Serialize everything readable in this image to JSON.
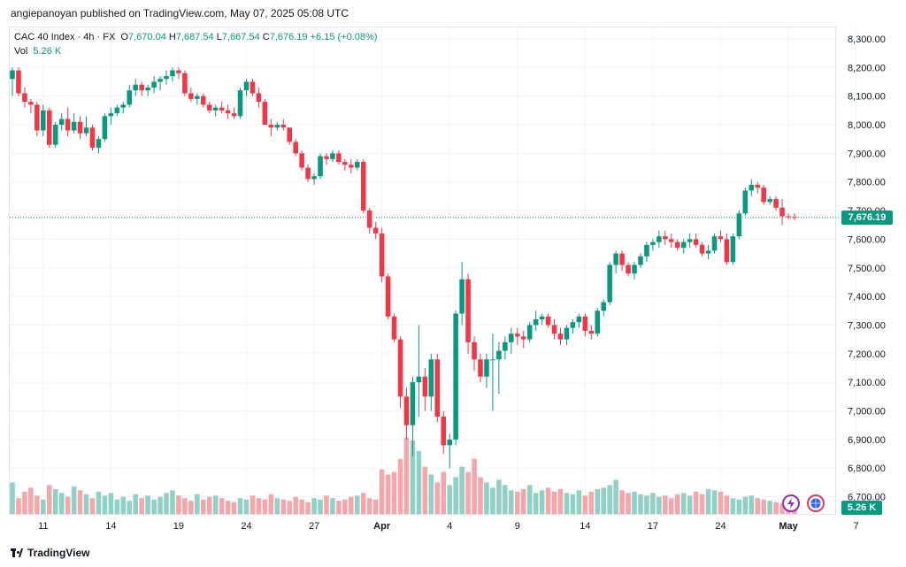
{
  "header": {
    "published": "angiepanoyan published on TradingView.com, May 07, 2025 05:08 UTC"
  },
  "legend": {
    "symbol": "CAC 40 Index · 4h · FX",
    "open_label": "O",
    "open": "7,670.04",
    "high_label": "H",
    "high": "7,687.54",
    "low_label": "L",
    "low": "7,667.54",
    "close_label": "C",
    "close": "7,676.19",
    "change": "+6.15 (+0.08%)",
    "vol_label": "Vol",
    "vol": "5.26 K"
  },
  "price_tag": "7,676.19",
  "volume_tag": "5.26 K",
  "footer": {
    "brand": "TradingView"
  },
  "icons": {
    "flash": "flash-icon",
    "globe": "globe-icon"
  },
  "colors": {
    "up": "#089981",
    "down": "#f23645",
    "vol_up": "#8fd1c4",
    "vol_down": "#f5a6ab",
    "grid": "#f0f3fa",
    "axis_text": "#131722"
  },
  "chart_data": {
    "type": "candlestick",
    "title": "CAC 40 Index · 4h · FX",
    "y_axis": {
      "min": 6640,
      "max": 8340,
      "ticks": [
        "8,300.00",
        "8,200.00",
        "8,100.00",
        "8,000.00",
        "7,900.00",
        "7,800.00",
        "7,700.00",
        "7,600.00",
        "7,500.00",
        "7,400.00",
        "7,300.00",
        "7,200.00",
        "7,100.00",
        "7,000.00",
        "6,900.00",
        "6,800.00",
        "6,700.00"
      ],
      "tick_values": [
        8300,
        8200,
        8100,
        8000,
        7900,
        7800,
        7700,
        7600,
        7500,
        7400,
        7300,
        7200,
        7100,
        7000,
        6900,
        6800,
        6700
      ]
    },
    "x_axis": {
      "labels": [
        "11",
        "14",
        "19",
        "24",
        "27",
        "Apr",
        "4",
        "9",
        "14",
        "17",
        "24",
        "May",
        "7"
      ],
      "label_bar_index": [
        5,
        16,
        27,
        38,
        49,
        60,
        71,
        82,
        93,
        104,
        115,
        126,
        137
      ]
    },
    "last_price": 7676.19,
    "candles_ohlc": [
      [
        8160,
        8200,
        8100,
        8190
      ],
      [
        8190,
        8200,
        8100,
        8110
      ],
      [
        8110,
        8130,
        8060,
        8080
      ],
      [
        8080,
        8090,
        8040,
        8070
      ],
      [
        8070,
        8080,
        7960,
        7980
      ],
      [
        7980,
        8070,
        7960,
        8050
      ],
      [
        8050,
        8060,
        7920,
        7930
      ],
      [
        7930,
        8010,
        7920,
        8000
      ],
      [
        8000,
        8040,
        7980,
        8020
      ],
      [
        8020,
        8060,
        7960,
        7980
      ],
      [
        7980,
        8040,
        7970,
        8010
      ],
      [
        8010,
        8030,
        7950,
        7970
      ],
      [
        7970,
        8030,
        7960,
        7990
      ],
      [
        7990,
        8000,
        7910,
        7920
      ],
      [
        7920,
        7960,
        7900,
        7950
      ],
      [
        7950,
        8040,
        7940,
        8030
      ],
      [
        8030,
        8060,
        8000,
        8040
      ],
      [
        8040,
        8070,
        8030,
        8060
      ],
      [
        8060,
        8080,
        8040,
        8070
      ],
      [
        8070,
        8140,
        8060,
        8120
      ],
      [
        8120,
        8160,
        8100,
        8140
      ],
      [
        8140,
        8150,
        8100,
        8120
      ],
      [
        8120,
        8140,
        8100,
        8130
      ],
      [
        8130,
        8170,
        8110,
        8150
      ],
      [
        8150,
        8170,
        8120,
        8160
      ],
      [
        8160,
        8190,
        8140,
        8170
      ],
      [
        8170,
        8200,
        8150,
        8190
      ],
      [
        8190,
        8200,
        8160,
        8180
      ],
      [
        8180,
        8190,
        8100,
        8110
      ],
      [
        8110,
        8130,
        8080,
        8090
      ],
      [
        8090,
        8110,
        8070,
        8100
      ],
      [
        8100,
        8110,
        8060,
        8070
      ],
      [
        8070,
        8080,
        8040,
        8050
      ],
      [
        8050,
        8070,
        8030,
        8060
      ],
      [
        8060,
        8080,
        8040,
        8050
      ],
      [
        8050,
        8070,
        8020,
        8040
      ],
      [
        8040,
        8060,
        8020,
        8030
      ],
      [
        8030,
        8130,
        8020,
        8120
      ],
      [
        8120,
        8160,
        8100,
        8150
      ],
      [
        8150,
        8160,
        8100,
        8110
      ],
      [
        8110,
        8130,
        8060,
        8080
      ],
      [
        8080,
        8090,
        8000,
        8000
      ],
      [
        8000,
        8020,
        7960,
        7990
      ],
      [
        7990,
        8010,
        7980,
        8000
      ],
      [
        8000,
        8020,
        7980,
        7990
      ],
      [
        7990,
        7990,
        7930,
        7940
      ],
      [
        7940,
        7950,
        7890,
        7900
      ],
      [
        7900,
        7910,
        7840,
        7850
      ],
      [
        7850,
        7860,
        7800,
        7810
      ],
      [
        7810,
        7830,
        7790,
        7820
      ],
      [
        7820,
        7900,
        7810,
        7890
      ],
      [
        7890,
        7900,
        7860,
        7880
      ],
      [
        7880,
        7910,
        7870,
        7900
      ],
      [
        7900,
        7910,
        7860,
        7870
      ],
      [
        7870,
        7880,
        7840,
        7860
      ],
      [
        7860,
        7880,
        7830,
        7850
      ],
      [
        7850,
        7880,
        7840,
        7870
      ],
      [
        7870,
        7880,
        7690,
        7700
      ],
      [
        7700,
        7710,
        7620,
        7640
      ],
      [
        7640,
        7660,
        7600,
        7620
      ],
      [
        7620,
        7640,
        7450,
        7470
      ],
      [
        7470,
        7480,
        7320,
        7330
      ],
      [
        7330,
        7340,
        7240,
        7250
      ],
      [
        7250,
        7260,
        7010,
        7050
      ],
      [
        7050,
        7080,
        6900,
        6950
      ],
      [
        6950,
        7120,
        6840,
        7100
      ],
      [
        7100,
        7300,
        6980,
        7120
      ],
      [
        7120,
        7150,
        7000,
        7050
      ],
      [
        7050,
        7200,
        7000,
        7180
      ],
      [
        7180,
        7200,
        6960,
        6980
      ],
      [
        6980,
        7000,
        6850,
        6880
      ],
      [
        6880,
        6920,
        6800,
        6900
      ],
      [
        6900,
        7350,
        6880,
        7340
      ],
      [
        7340,
        7520,
        7300,
        7460
      ],
      [
        7460,
        7480,
        7200,
        7240
      ],
      [
        7240,
        7260,
        7140,
        7180
      ],
      [
        7180,
        7200,
        7100,
        7120
      ],
      [
        7120,
        7200,
        7080,
        7180
      ],
      [
        7180,
        7270,
        7000,
        7180
      ],
      [
        7180,
        7240,
        7060,
        7210
      ],
      [
        7210,
        7260,
        7180,
        7240
      ],
      [
        7240,
        7290,
        7200,
        7270
      ],
      [
        7270,
        7290,
        7230,
        7260
      ],
      [
        7260,
        7280,
        7220,
        7250
      ],
      [
        7250,
        7310,
        7240,
        7300
      ],
      [
        7300,
        7350,
        7280,
        7320
      ],
      [
        7320,
        7340,
        7300,
        7330
      ],
      [
        7330,
        7340,
        7290,
        7300
      ],
      [
        7300,
        7320,
        7250,
        7270
      ],
      [
        7270,
        7290,
        7230,
        7250
      ],
      [
        7250,
        7300,
        7230,
        7290
      ],
      [
        7290,
        7320,
        7270,
        7310
      ],
      [
        7310,
        7340,
        7290,
        7330
      ],
      [
        7330,
        7340,
        7260,
        7280
      ],
      [
        7280,
        7300,
        7250,
        7270
      ],
      [
        7270,
        7360,
        7260,
        7350
      ],
      [
        7350,
        7390,
        7330,
        7380
      ],
      [
        7380,
        7520,
        7370,
        7510
      ],
      [
        7510,
        7560,
        7480,
        7550
      ],
      [
        7550,
        7560,
        7490,
        7510
      ],
      [
        7510,
        7520,
        7470,
        7480
      ],
      [
        7480,
        7520,
        7460,
        7510
      ],
      [
        7510,
        7550,
        7500,
        7540
      ],
      [
        7540,
        7590,
        7520,
        7580
      ],
      [
        7580,
        7600,
        7560,
        7590
      ],
      [
        7590,
        7630,
        7570,
        7610
      ],
      [
        7610,
        7630,
        7580,
        7600
      ],
      [
        7600,
        7620,
        7570,
        7590
      ],
      [
        7590,
        7600,
        7560,
        7570
      ],
      [
        7570,
        7600,
        7550,
        7590
      ],
      [
        7590,
        7620,
        7570,
        7600
      ],
      [
        7600,
        7620,
        7570,
        7580
      ],
      [
        7580,
        7590,
        7540,
        7550
      ],
      [
        7550,
        7580,
        7530,
        7560
      ],
      [
        7560,
        7620,
        7550,
        7610
      ],
      [
        7610,
        7630,
        7590,
        7600
      ],
      [
        7600,
        7620,
        7510,
        7520
      ],
      [
        7520,
        7620,
        7510,
        7610
      ],
      [
        7610,
        7700,
        7600,
        7690
      ],
      [
        7690,
        7780,
        7680,
        7770
      ],
      [
        7770,
        7810,
        7750,
        7790
      ],
      [
        7790,
        7800,
        7760,
        7780
      ],
      [
        7780,
        7790,
        7720,
        7730
      ],
      [
        7730,
        7750,
        7720,
        7740
      ],
      [
        7740,
        7750,
        7700,
        7710
      ],
      [
        7710,
        7740,
        7650,
        7680
      ],
      [
        7680,
        7690,
        7670,
        7678
      ],
      [
        7678,
        7690,
        7667,
        7676
      ]
    ],
    "volume": [
      120,
      60,
      85,
      100,
      70,
      55,
      110,
      95,
      80,
      65,
      105,
      90,
      75,
      60,
      85,
      70,
      80,
      55,
      65,
      50,
      75,
      60,
      70,
      55,
      65,
      80,
      90,
      70,
      60,
      50,
      75,
      55,
      65,
      70,
      60,
      50,
      45,
      60,
      55,
      70,
      60,
      55,
      75,
      60,
      55,
      50,
      65,
      55,
      45,
      60,
      55,
      70,
      60,
      50,
      55,
      65,
      70,
      80,
      60,
      55,
      170,
      150,
      160,
      210,
      290,
      280,
      240,
      180,
      150,
      120,
      160,
      110,
      140,
      180,
      160,
      210,
      140,
      120,
      100,
      130,
      110,
      90,
      85,
      95,
      110,
      80,
      90,
      100,
      85,
      95,
      80,
      75,
      90,
      70,
      85,
      95,
      100,
      110,
      130,
      90,
      80,
      85,
      75,
      70,
      80,
      65,
      70,
      60,
      75,
      80,
      70,
      85,
      75,
      95,
      90,
      85,
      70,
      60,
      55,
      65,
      70,
      60,
      55,
      50,
      45,
      40,
      48,
      52
    ]
  }
}
